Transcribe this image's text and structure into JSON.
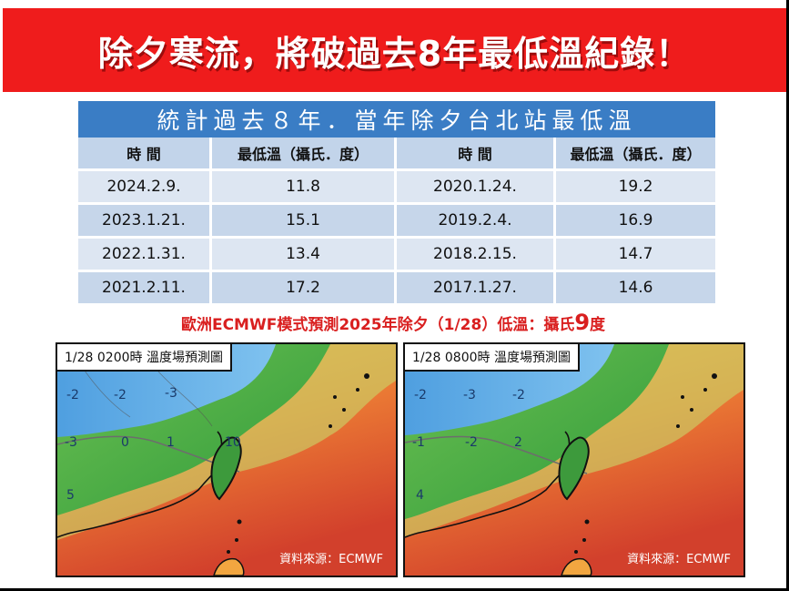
{
  "header": {
    "title": "除夕寒流，將破過去8年最低溫紀錄！"
  },
  "table": {
    "title": "統計過去８年．當年除夕台北站最低溫",
    "columns": [
      "時 間",
      "最低溫（攝氏．度）",
      "時 間",
      "最低溫（攝氏．度）"
    ],
    "rows": [
      [
        "2024.2.9.",
        "11.8",
        "2020.1.24.",
        "19.2"
      ],
      [
        "2023.1.21.",
        "15.1",
        "2019.2.4.",
        "16.9"
      ],
      [
        "2022.1.31.",
        "13.4",
        "2018.2.15.",
        "14.7"
      ],
      [
        "2021.2.11.",
        "17.2",
        "2017.1.27.",
        "14.6"
      ]
    ]
  },
  "forecast": {
    "text": "歐洲ECMWF模式預測2025年除夕（1/28）低溫：攝氏",
    "value": "9",
    "unit": "度"
  },
  "maps": [
    {
      "label": "1/28 0200時  溫度場預測圖",
      "source": "資料來源：ECMWF",
      "contour_labels": [
        "-2",
        "-2",
        "-3",
        "-3",
        "0",
        "1",
        "10",
        "5"
      ]
    },
    {
      "label": "1/28 0800時  溫度場預測圖",
      "source": "資料來源：ECMWF",
      "contour_labels": [
        "-2",
        "-3",
        "-2",
        "-1",
        "-2",
        "2",
        "4"
      ]
    }
  ],
  "colors": {
    "banner": "#ef1c1c",
    "table_header": "#3a7dc5",
    "forecast_text": "#d91f1f"
  }
}
